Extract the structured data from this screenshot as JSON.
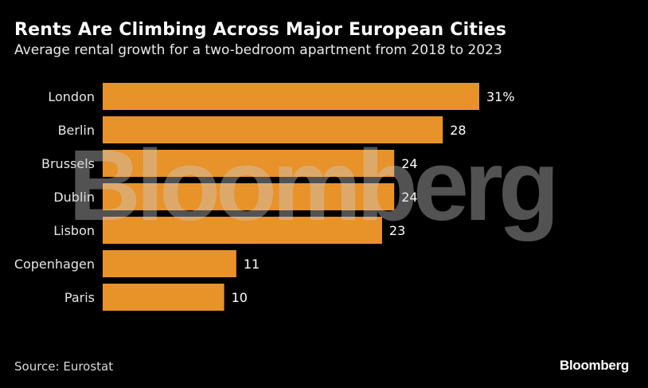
{
  "chart_data": {
    "type": "bar",
    "orientation": "horizontal",
    "title": "Rents Are Climbing Across Major European Cities",
    "subtitle": "Average rental growth for a two-bedroom apartment from 2018 to 2023",
    "categories": [
      "London",
      "Berlin",
      "Brussels",
      "Dublin",
      "Lisbon",
      "Copenhagen",
      "Paris"
    ],
    "values": [
      31,
      28,
      24,
      24,
      23,
      11,
      10
    ],
    "value_labels": [
      "31%",
      "28",
      "24",
      "24",
      "23",
      "11",
      "10"
    ],
    "xlabel": "",
    "ylabel": "",
    "unit": "%",
    "xlim": [
      0,
      31
    ],
    "grid": false,
    "bar_color": "#E8922A"
  },
  "source": "Source: Eurostat",
  "watermark": "Bloomberg",
  "logo": "Bloomberg",
  "colors": {
    "background": "#000000",
    "bar": "#E8922A",
    "text": "#FFFFFF"
  }
}
